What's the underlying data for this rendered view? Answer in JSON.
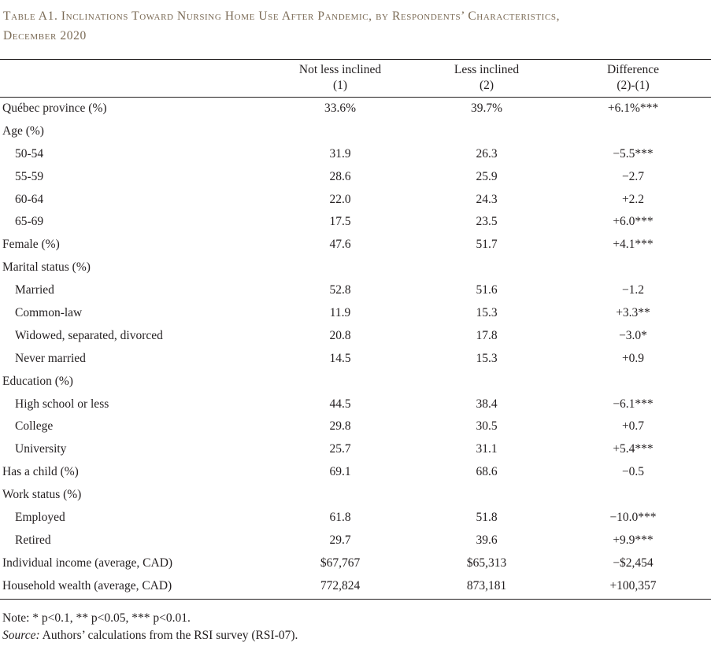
{
  "title_line1": "Table A1. Inclinations Toward Nursing Home Use After Pandemic, by Respondents’ Characteristics,",
  "title_line2": "December 2020",
  "columns": [
    {
      "label": "Not less inclined",
      "sub": "(1)"
    },
    {
      "label": "Less inclined",
      "sub": "(2)"
    },
    {
      "label": "Difference",
      "sub": "(2)-(1)"
    }
  ],
  "rows": [
    {
      "label": "Québec province (%)",
      "sub": false,
      "v1": "33.6%",
      "v2": "39.7%",
      "v3": "+6.1%***"
    },
    {
      "label": "Age (%)",
      "sub": false,
      "v1": "",
      "v2": "",
      "v3": ""
    },
    {
      "label": "50-54",
      "sub": true,
      "v1": "31.9",
      "v2": "26.3",
      "v3": "−5.5***"
    },
    {
      "label": "55-59",
      "sub": true,
      "v1": "28.6",
      "v2": "25.9",
      "v3": "−2.7"
    },
    {
      "label": "60-64",
      "sub": true,
      "v1": "22.0",
      "v2": "24.3",
      "v3": "+2.2"
    },
    {
      "label": "65-69",
      "sub": true,
      "v1": "17.5",
      "v2": "23.5",
      "v3": "+6.0***"
    },
    {
      "label": "Female (%)",
      "sub": false,
      "v1": "47.6",
      "v2": "51.7",
      "v3": "+4.1***"
    },
    {
      "label": "Marital status (%)",
      "sub": false,
      "v1": "",
      "v2": "",
      "v3": ""
    },
    {
      "label": "Married",
      "sub": true,
      "v1": "52.8",
      "v2": "51.6",
      "v3": "−1.2"
    },
    {
      "label": "Common-law",
      "sub": true,
      "v1": "11.9",
      "v2": "15.3",
      "v3": "+3.3**"
    },
    {
      "label": "Widowed, separated, divorced",
      "sub": true,
      "v1": "20.8",
      "v2": "17.8",
      "v3": "−3.0*"
    },
    {
      "label": "Never married",
      "sub": true,
      "v1": "14.5",
      "v2": "15.3",
      "v3": "+0.9"
    },
    {
      "label": "Education (%)",
      "sub": false,
      "v1": "",
      "v2": "",
      "v3": ""
    },
    {
      "label": "High school or less",
      "sub": true,
      "v1": "44.5",
      "v2": "38.4",
      "v3": "−6.1***"
    },
    {
      "label": "College",
      "sub": true,
      "v1": "29.8",
      "v2": "30.5",
      "v3": "+0.7"
    },
    {
      "label": "University",
      "sub": true,
      "v1": "25.7",
      "v2": "31.1",
      "v3": "+5.4***"
    },
    {
      "label": "Has a child (%)",
      "sub": false,
      "v1": "69.1",
      "v2": "68.6",
      "v3": "−0.5"
    },
    {
      "label": "Work status (%)",
      "sub": false,
      "v1": "",
      "v2": "",
      "v3": ""
    },
    {
      "label": "Employed",
      "sub": true,
      "v1": "61.8",
      "v2": "51.8",
      "v3": "−10.0***"
    },
    {
      "label": "Retired",
      "sub": true,
      "v1": "29.7",
      "v2": "39.6",
      "v3": "+9.9***"
    },
    {
      "label": "Individual income (average, CAD)",
      "sub": false,
      "v1": "$67,767",
      "v2": "$65,313",
      "v3": "−$2,454"
    },
    {
      "label": "Household wealth (average, CAD)",
      "sub": false,
      "v1": "772,824",
      "v2": "873,181",
      "v3": "+100,357"
    }
  ],
  "note": "Note: * p<0.1, ** p<0.05, *** p<0.01.",
  "source_label": "Source:",
  "source_text": " Authors’ calculations from the RSI survey (RSI-07)."
}
